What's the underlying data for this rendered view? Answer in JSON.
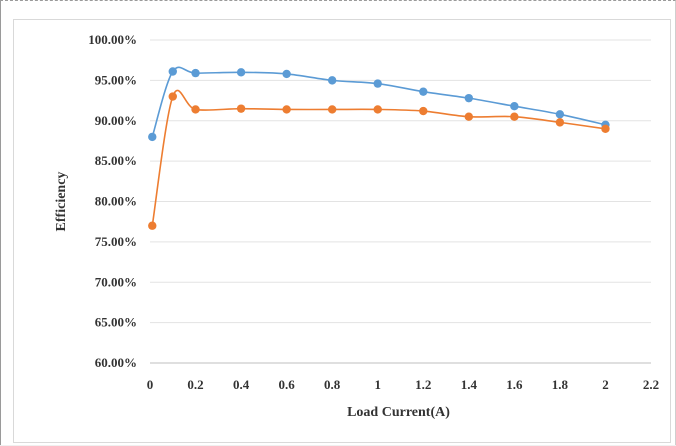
{
  "chart_data": {
    "type": "line",
    "title": "",
    "xlabel": "Load Current(A)",
    "ylabel": "Efficiency",
    "xlim": [
      0,
      2.2
    ],
    "ylim": [
      0.6,
      1.0
    ],
    "x_ticks": [
      "0",
      "0.2",
      "0.4",
      "0.6",
      "0.8",
      "1",
      "1.2",
      "1.4",
      "1.6",
      "1.8",
      "2",
      "2.2"
    ],
    "y_ticks": [
      "60.00%",
      "65.00%",
      "70.00%",
      "75.00%",
      "80.00%",
      "85.00%",
      "90.00%",
      "95.00%",
      "100.00%"
    ],
    "grid": "horizontal",
    "legend": "none",
    "series": [
      {
        "color": "#5b9bd5",
        "x": [
          0.01,
          0.1,
          0.2,
          0.4,
          0.6,
          0.8,
          1.0,
          1.2,
          1.4,
          1.6,
          1.8,
          2.0
        ],
        "y": [
          0.88,
          0.961,
          0.959,
          0.96,
          0.958,
          0.95,
          0.946,
          0.936,
          0.928,
          0.918,
          0.908,
          0.895
        ]
      },
      {
        "color": "#ed7d31",
        "x": [
          0.01,
          0.1,
          0.2,
          0.4,
          0.6,
          0.8,
          1.0,
          1.2,
          1.4,
          1.6,
          1.8,
          2.0
        ],
        "y": [
          0.77,
          0.93,
          0.914,
          0.915,
          0.914,
          0.914,
          0.914,
          0.912,
          0.905,
          0.905,
          0.898,
          0.89
        ]
      }
    ]
  }
}
